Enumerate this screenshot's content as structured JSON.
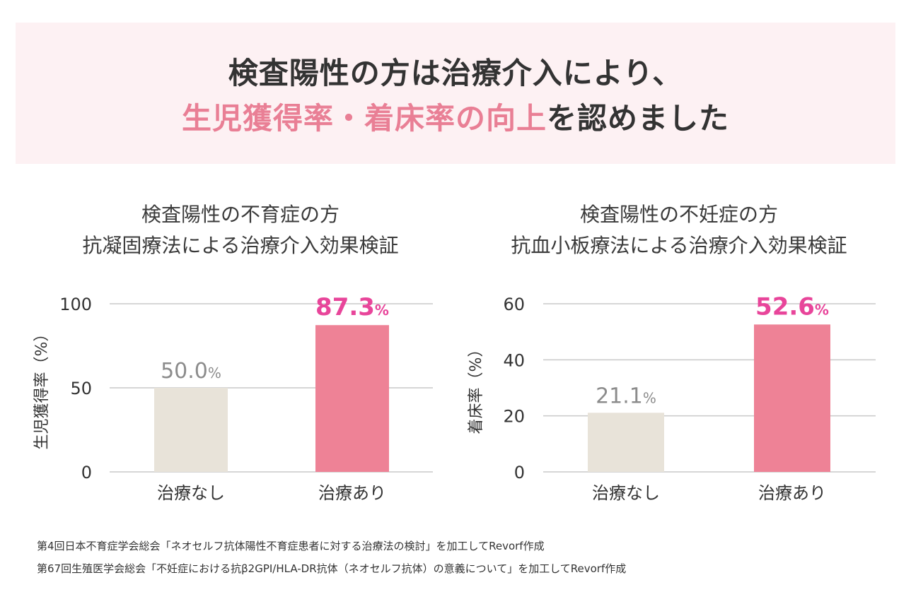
{
  "header": {
    "line1": "検査陽性の方は治療介入により、",
    "line2_accent": "生児獲得率・着床率の向上",
    "line2_rest": "を認めました"
  },
  "colors": {
    "banner_bg": "#fdf1f3",
    "accent_pink": "#e97f95",
    "value_pink": "#e8459a",
    "bar_control": "#e8e3d9",
    "bar_treatment": "#ee8296",
    "value_gray": "#8c8c8c"
  },
  "chart_data": [
    {
      "type": "bar",
      "title_lines": [
        "検査陽性の不育症の方",
        "抗凝固療法による治療介入効果検証"
      ],
      "categories": [
        "治療なし",
        "治療あり"
      ],
      "values": [
        50.0,
        87.3
      ],
      "value_labels": [
        "50.0",
        "87.3"
      ],
      "unit": "%",
      "ylabel": "生児獲得率（%）",
      "ylim": [
        0,
        100
      ],
      "yticks": [
        0,
        50,
        100
      ],
      "grid": true
    },
    {
      "type": "bar",
      "title_lines": [
        "検査陽性の不妊症の方",
        "抗血小板療法による治療介入効果検証"
      ],
      "categories": [
        "治療なし",
        "治療あり"
      ],
      "values": [
        21.1,
        52.6
      ],
      "value_labels": [
        "21.1",
        "52.6"
      ],
      "unit": "%",
      "ylabel": "着床率（%）",
      "ylim": [
        0,
        60
      ],
      "yticks": [
        0,
        20,
        40,
        60
      ],
      "grid": true
    }
  ],
  "footnotes": [
    "第4回日本不育症学会総会「ネオセルフ抗体陽性不育症患者に対する治療法の検討」を加工してRevorf作成",
    "第67回生殖医学会総会「不妊症における抗β2GPI/HLA-DR抗体（ネオセルフ抗体）の意義について」を加工してRevorf作成"
  ]
}
